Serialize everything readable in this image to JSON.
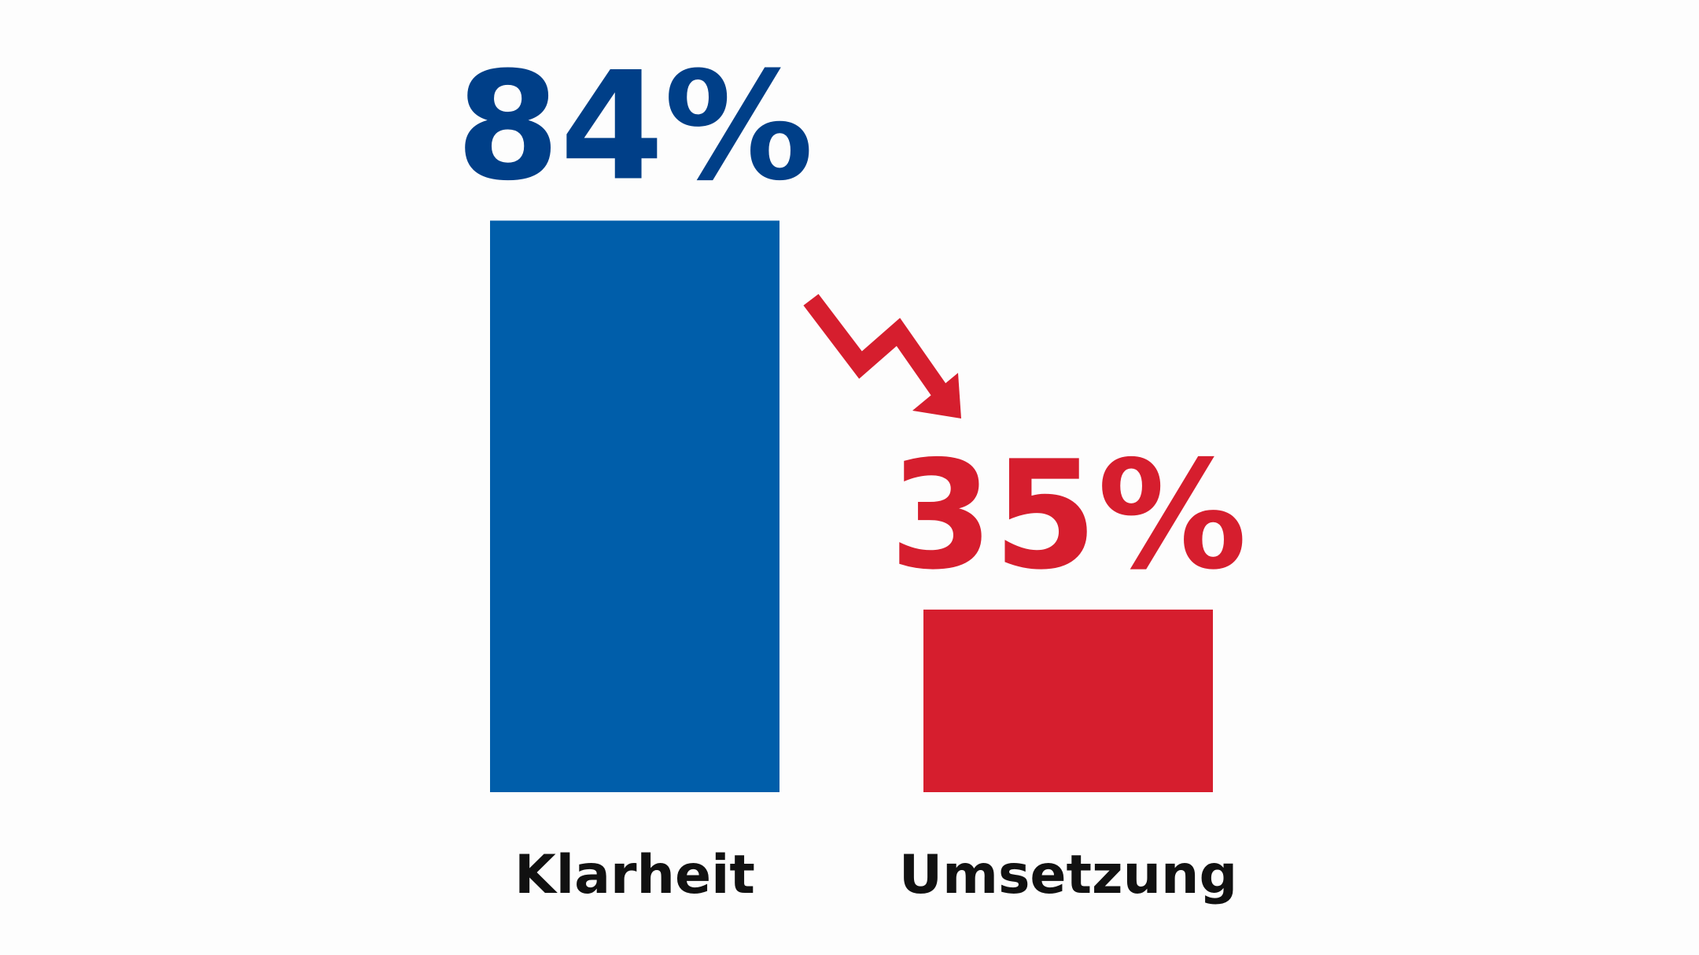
{
  "chart_data": {
    "type": "bar",
    "categories": [
      "Klarheit",
      "Umsetzung"
    ],
    "values": [
      84,
      35
    ],
    "value_labels": [
      "84%",
      "35%"
    ],
    "colors": [
      "#005eaa",
      "#d61e2e"
    ],
    "label_colors": [
      "#003f88",
      "#d61e2e"
    ],
    "ylim": [
      12,
      100
    ]
  }
}
